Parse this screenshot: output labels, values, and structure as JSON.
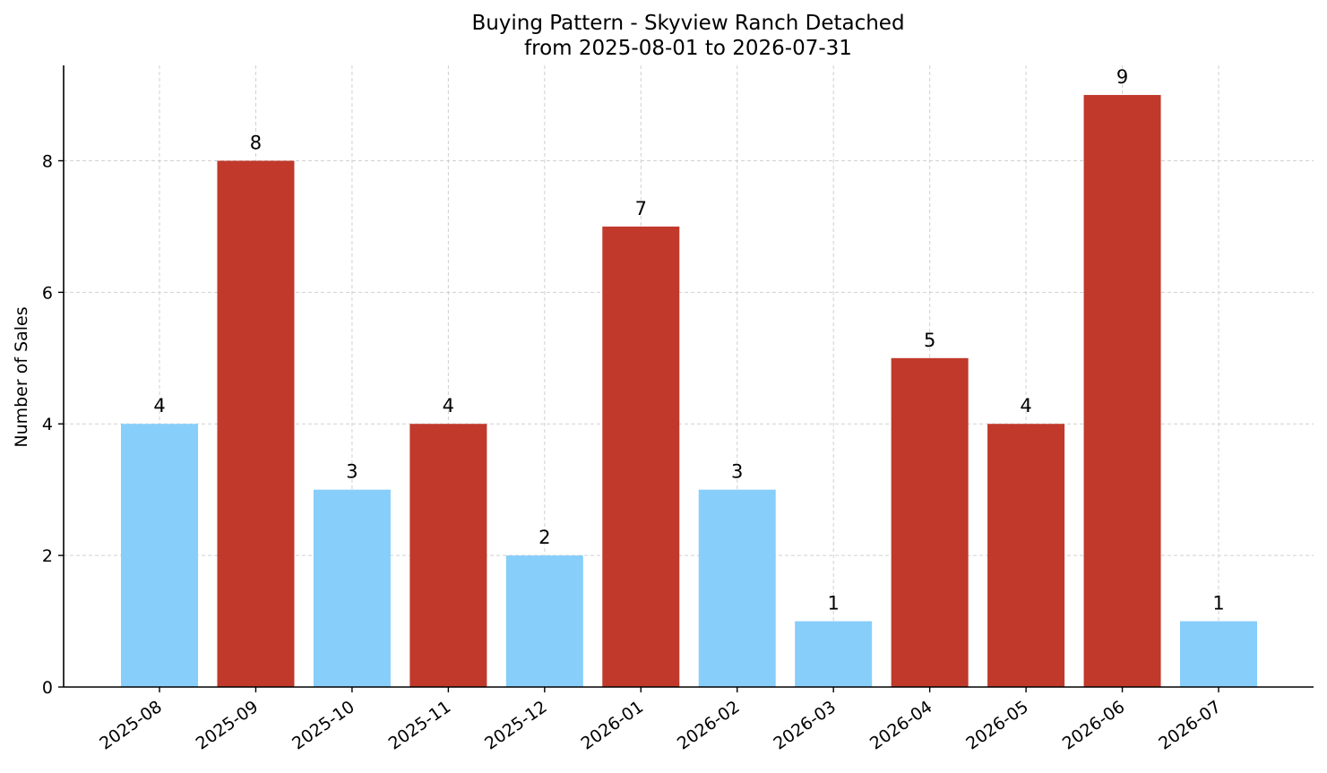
{
  "chart_data": {
    "type": "bar",
    "title": "Buying Pattern - Skyview Ranch Detached",
    "subtitle": "from 2025-08-01 to 2026-07-31",
    "xlabel": "",
    "ylabel": "Number of Sales",
    "categories": [
      "2025-08",
      "2025-09",
      "2025-10",
      "2025-11",
      "2025-12",
      "2026-01",
      "2026-02",
      "2026-03",
      "2026-04",
      "2026-05",
      "2026-06",
      "2026-07"
    ],
    "values": [
      4,
      8,
      3,
      4,
      2,
      7,
      3,
      1,
      5,
      4,
      9,
      1
    ],
    "value_labels": [
      "4",
      "8",
      "3",
      "4",
      "2",
      "7",
      "3",
      "1",
      "5",
      "4",
      "9",
      "1"
    ],
    "bar_colors": [
      "#87cefa",
      "#c0392b",
      "#87cefa",
      "#c0392b",
      "#87cefa",
      "#c0392b",
      "#87cefa",
      "#87cefa",
      "#c0392b",
      "#c0392b",
      "#c0392b",
      "#87cefa"
    ],
    "ylim": [
      0,
      9.45
    ],
    "yticks": [
      "0",
      "2",
      "4",
      "6",
      "8"
    ],
    "grid": true,
    "legend": false
  }
}
